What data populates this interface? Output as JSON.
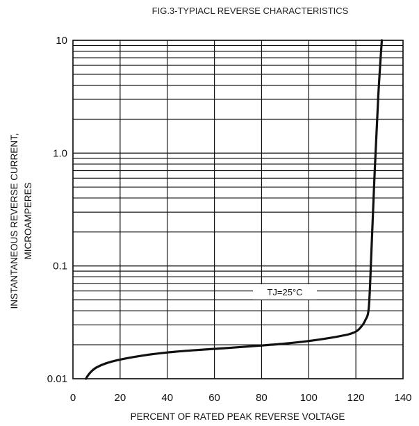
{
  "chart_data": {
    "type": "line",
    "title": "FIG.3-TYPIACL REVERSE CHARACTERISTICS",
    "xlabel": "PERCENT OF RATED PEAK REVERSE VOLTAGE",
    "ylabel_line1": "INSTANTANEOUS  REVERSE CURRENT,",
    "ylabel_line2": "MICROAMPERES",
    "xlim": [
      0,
      140
    ],
    "ylim": [
      0.01,
      10
    ],
    "y_scale": "log",
    "grid": true,
    "x_ticks": [
      0,
      20,
      40,
      60,
      80,
      100,
      120,
      140
    ],
    "x_tick_labels": [
      "0",
      "20",
      "40",
      "60",
      "80",
      "100",
      "120",
      "140"
    ],
    "y_ticks": [
      0.01,
      0.1,
      1,
      10
    ],
    "y_tick_labels": [
      "0.01",
      "0.1",
      "1.0",
      "10"
    ],
    "annotation": "TJ=25°C",
    "series": [
      {
        "x": [
          5.5,
          6.5,
          8,
          10,
          14,
          20,
          30,
          40,
          50,
          60,
          70,
          80,
          90,
          100,
          110,
          117,
          120,
          122,
          124,
          125.5,
          126.5,
          128,
          129.5,
          131
        ],
        "y": [
          0.01,
          0.0108,
          0.0117,
          0.0126,
          0.0137,
          0.0148,
          0.0161,
          0.0171,
          0.0178,
          0.0184,
          0.019,
          0.0197,
          0.0205,
          0.0216,
          0.0232,
          0.0248,
          0.0262,
          0.0285,
          0.033,
          0.043,
          0.12,
          0.7,
          3.2,
          10
        ]
      }
    ]
  }
}
